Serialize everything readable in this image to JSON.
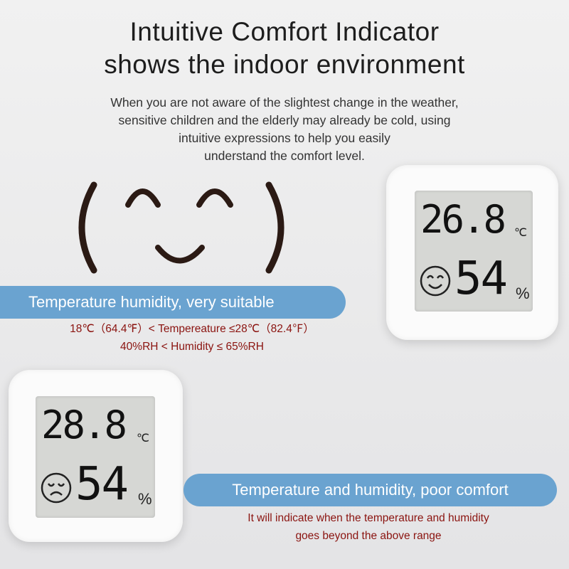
{
  "header": {
    "title_line1": "Intuitive Comfort Indicator",
    "title_line2": "shows the indoor environment",
    "description": [
      "When you are not aware of the slightest change in the weather,",
      "sensitive children and the elderly may already be cold, using",
      "intuitive expressions to help you easily",
      "understand the comfort level."
    ]
  },
  "comfortable": {
    "label": "Temperature humidity, very suitable",
    "range_temp": "18℃（64.4℉）< Tempereature ≤28℃（82.4℉）",
    "range_humidity": "40%RH < Humidity ≤ 65%RH",
    "face_icon": "smiling-face-icon"
  },
  "device_good": {
    "temperature": "26.8",
    "temp_unit": "℃",
    "humidity": "54",
    "humidity_unit": "%",
    "face_icon": "happy-face-icon"
  },
  "device_poor": {
    "temperature": "28.8",
    "temp_unit": "℃",
    "humidity": "54",
    "humidity_unit": "%",
    "face_icon": "sad-face-icon"
  },
  "poor": {
    "label": "Temperature and humidity, poor comfort",
    "note": [
      "It will indicate when the temperature and humidity",
      "goes beyond the above range"
    ]
  },
  "colors": {
    "pill": "#6aa3d0",
    "range_text": "#8b1410"
  }
}
